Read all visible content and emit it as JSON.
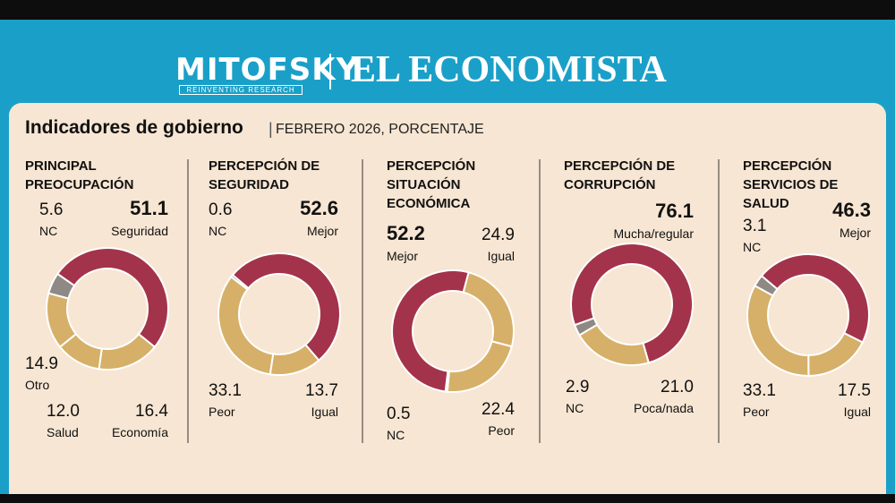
{
  "header": {
    "brand": "MITOFSKY",
    "tagline": "REINVENTING RESEARCH",
    "partner": "EL ECONOMISTA"
  },
  "title": "Indicadores de gobierno",
  "subtitle": "FEBRERO 2026, PORCENTAJE",
  "chart_data": [
    {
      "type": "donut",
      "title": "PRINCIPAL PREOCUPACIÓN",
      "categories": [
        "Seguridad",
        "Economía",
        "Salud",
        "Otro",
        "NC"
      ],
      "values": [
        51.1,
        16.4,
        12.0,
        14.9,
        5.6
      ],
      "value_labels": [
        "51.1",
        "16.4",
        "12.0",
        "14.9",
        "5.6"
      ],
      "colors": [
        "#a3334b",
        "#d6b068",
        "#d6b068",
        "#d6b068",
        "#8e8985"
      ]
    },
    {
      "type": "donut",
      "title": "PERCEPCIÓN DE SEGURIDAD",
      "categories": [
        "Mejor",
        "Igual",
        "Peor",
        "NC"
      ],
      "values": [
        52.6,
        13.7,
        33.1,
        0.6
      ],
      "value_labels": [
        "52.6",
        "13.7",
        "33.1",
        "0.6"
      ],
      "colors": [
        "#a3334b",
        "#d6b068",
        "#d6b068",
        "#8e8985"
      ]
    },
    {
      "type": "donut",
      "title": "PERCEPCIÓN SITUACIÓN ECONÓMICA",
      "categories": [
        "Igual",
        "Peor",
        "NC",
        "Mejor"
      ],
      "values": [
        24.9,
        22.4,
        0.5,
        52.2
      ],
      "value_labels": [
        "24.9",
        "22.4",
        "0.5",
        "52.2"
      ],
      "colors": [
        "#d6b068",
        "#d6b068",
        "#8e8985",
        "#a3334b"
      ]
    },
    {
      "type": "donut",
      "title": "PERCEPCIÓN DE CORRUPCIÓN",
      "categories": [
        "Mucha/regular",
        "Poca/nada",
        "NC"
      ],
      "values": [
        76.1,
        21.0,
        2.9
      ],
      "value_labels": [
        "76.1",
        "21.0",
        "2.9"
      ],
      "colors": [
        "#a3334b",
        "#d6b068",
        "#8e8985"
      ]
    },
    {
      "type": "donut",
      "title": "PERCEPCIÓN SERVICIOS DE SALUD",
      "categories": [
        "Mejor",
        "Igual",
        "Peor",
        "NC"
      ],
      "values": [
        46.3,
        17.5,
        33.1,
        3.1
      ],
      "value_labels": [
        "46.3",
        "17.5",
        "33.1",
        "3.1"
      ],
      "colors": [
        "#a3334b",
        "#d6b068",
        "#d6b068",
        "#8e8985"
      ]
    }
  ]
}
